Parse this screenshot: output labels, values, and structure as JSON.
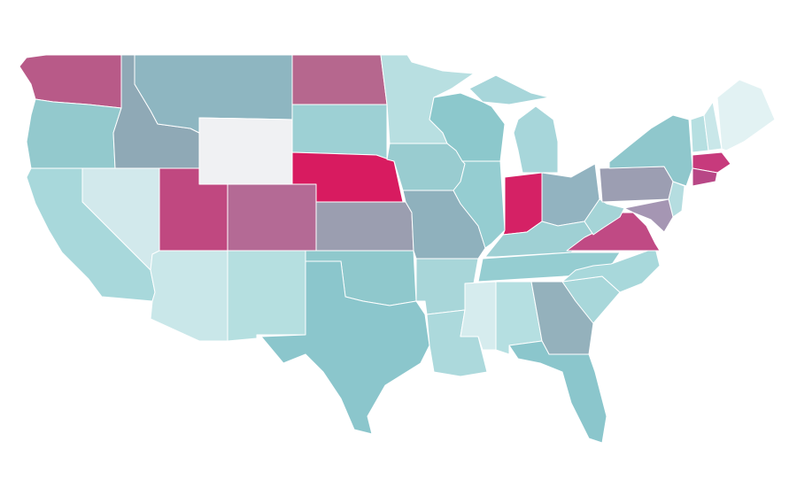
{
  "map": {
    "region_colors": [
      "#b85a88",
      "#93c9cd",
      "#8fa9b6",
      "#8eb6c1",
      "#f0f1f3",
      "#b6678e",
      "#9dd0d4",
      "#b8dfe1",
      "#d2e9ec",
      "#a8d8db",
      "#c04880",
      "#b46a95",
      "#c9e7e9",
      "#b5dfe0",
      "#d81b60",
      "#9b9eb0",
      "#8fc8cc",
      "#8bc6cc",
      "#99ccd0",
      "#8fb1bd",
      "#a8d6d9",
      "#acd9dc",
      "#8cc8cc",
      "#95cdd1",
      "#d52165",
      "#a7d6da",
      "#92b3c0",
      "#9fd0d4",
      "#95cdd1",
      "#d6ecee",
      "#b5dfe1",
      "#94b1bc",
      "#8bc6cc",
      "#a8d7da",
      "#a8d8db",
      "#c04a84",
      "#a5d4d7",
      "#9c9eb2",
      "#8fc7cc",
      "#b5dde0",
      "#a596b3",
      "#b6dfe1",
      "#c9e7e9",
      "#e2f2f3",
      "#c73a7c",
      "#b84786"
    ]
  }
}
